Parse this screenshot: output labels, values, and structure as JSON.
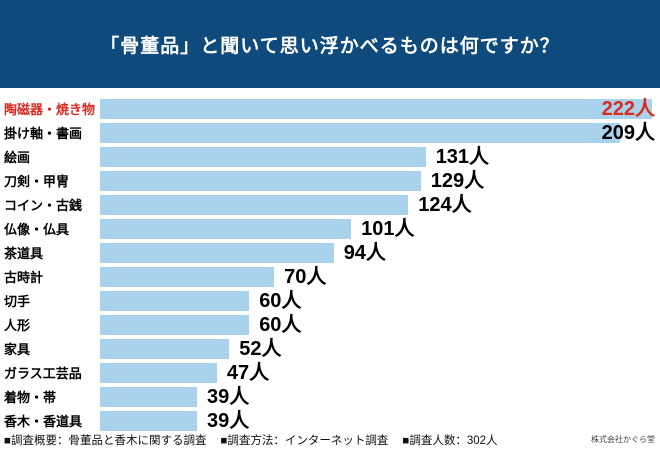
{
  "header": {
    "title": "「骨董品」と聞いて思い浮かべるものは何ですか？",
    "bg_color": "#0e4a7b",
    "text_color": "#ffffff"
  },
  "chart_data": {
    "type": "bar",
    "orientation": "horizontal",
    "title": "「骨董品」と聞いて思い浮かべるものは何ですか？",
    "unit": "人",
    "categories": [
      "陶磁器・焼き物",
      "掛け軸・書画",
      "絵画",
      "刀剣・甲冑",
      "コイン・古銭",
      "仏像・仏具",
      "茶道具",
      "古時計",
      "切手",
      "人形",
      "家具",
      "ガラス工芸品",
      "着物・帯",
      "香木・香道具"
    ],
    "values": [
      222,
      209,
      131,
      129,
      124,
      101,
      94,
      70,
      60,
      60,
      52,
      47,
      39,
      39
    ],
    "value_labels": [
      "222人",
      "209人",
      "131人",
      "129人",
      "124人",
      "101人",
      "94人",
      "70人",
      "60人",
      "60人",
      "52人",
      "47人",
      "39人",
      "39人"
    ],
    "highlight_index": 0,
    "bar_color": "#a9d3ec",
    "highlight_color": "#d92b21",
    "xlim": [
      0,
      222
    ],
    "grid": false,
    "legend": false
  },
  "footer": {
    "items": [
      "■調査概要：骨董品と香木に関する調査",
      "■調査方法：インターネット調査",
      "■調査人数：302人"
    ],
    "company": "株式会社かぐら堂"
  }
}
